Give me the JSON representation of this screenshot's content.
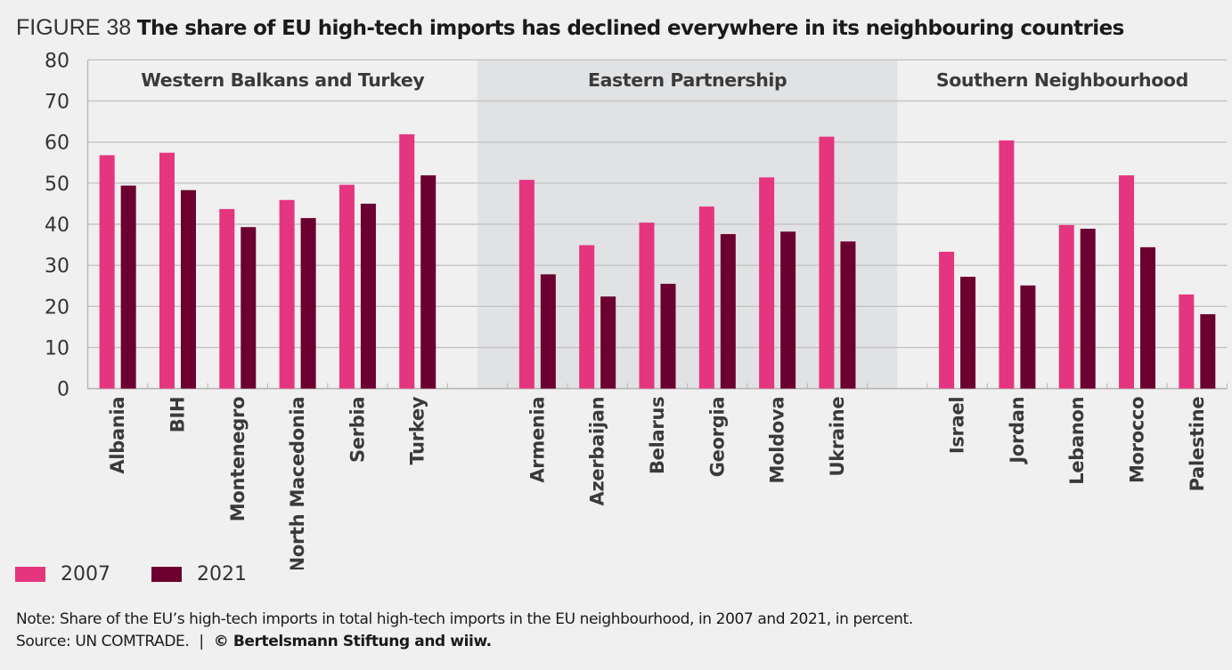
{
  "figure": {
    "number": "FIGURE 38",
    "title": "The share of EU high-tech imports has declined everywhere in its neighbouring countries"
  },
  "legend": [
    {
      "label": "2007",
      "color": "#e5357f"
    },
    {
      "label": "2021",
      "color": "#6b0030"
    }
  ],
  "footer": {
    "note": "Note: Share of the EU’s high-tech imports in total high-tech imports in the EU neighbourhood, in 2007 and 2021, in percent.",
    "source": "Source: UN COMTRADE.",
    "separator": "|",
    "copyright": "© Bertelsmann Stiftung and wiiw."
  },
  "colors": {
    "background": "#f0f0f0",
    "panel_shaded": "#e1e2e4",
    "gridline": "#c4c4c4",
    "series_2007": "#e5357f",
    "series_2021": "#6b0030"
  },
  "chart_data": {
    "type": "bar",
    "title": "The share of EU high-tech imports has declined everywhere in its neighbouring countries",
    "xlabel": "",
    "ylabel": "",
    "ylim": [
      0,
      80
    ],
    "yticks": [
      0,
      10,
      20,
      30,
      40,
      50,
      60,
      70,
      80
    ],
    "grid": true,
    "legend_position": "bottom-left",
    "groups": [
      {
        "name": "Western Balkans and Turkey",
        "shaded": false,
        "categories": [
          "Albania",
          "BIH",
          "Montenegro",
          "North Macedonia",
          "Serbia",
          "Turkey"
        ],
        "series": [
          {
            "name": "2007",
            "values": [
              56.8,
              57.4,
              43.7,
              45.9,
              49.6,
              61.9
            ]
          },
          {
            "name": "2021",
            "values": [
              49.4,
              48.3,
              39.3,
              41.5,
              45.0,
              51.9
            ]
          }
        ]
      },
      {
        "name": "Eastern Partnership",
        "shaded": true,
        "categories": [
          "Armenia",
          "Azerbaijan",
          "Belarus",
          "Georgia",
          "Moldova",
          "Ukraine"
        ],
        "series": [
          {
            "name": "2007",
            "values": [
              50.8,
              34.9,
              40.4,
              44.3,
              51.4,
              61.3
            ]
          },
          {
            "name": "2021",
            "values": [
              27.8,
              22.4,
              25.5,
              37.6,
              38.2,
              35.8
            ]
          }
        ]
      },
      {
        "name": "Southern Neighbourhood",
        "shaded": false,
        "categories": [
          "Israel",
          "Jordan",
          "Lebanon",
          "Morocco",
          "Palestine"
        ],
        "series": [
          {
            "name": "2007",
            "values": [
              33.3,
              60.4,
              39.8,
              51.9,
              22.9
            ]
          },
          {
            "name": "2021",
            "values": [
              27.2,
              25.1,
              38.9,
              34.4,
              18.1
            ]
          }
        ]
      }
    ]
  }
}
